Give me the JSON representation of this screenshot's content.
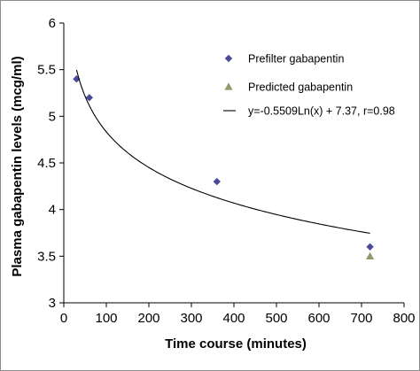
{
  "chart_data": {
    "type": "scatter",
    "title": "",
    "xlabel": "Time course (minutes)",
    "ylabel": "Plasma gabapentin levels (mcg/ml)",
    "xlim": [
      0,
      800
    ],
    "ylim": [
      3,
      6
    ],
    "xticks": [
      0,
      100,
      200,
      300,
      400,
      500,
      600,
      700,
      800
    ],
    "yticks": [
      3,
      3.5,
      4,
      4.5,
      5,
      5.5,
      6
    ],
    "grid": false,
    "legend_position": "right",
    "series": [
      {
        "name": "Prefilter gabapentin",
        "marker": "diamond",
        "color": "#4b4b9a",
        "x": [
          30,
          60,
          360,
          720
        ],
        "y": [
          5.4,
          5.2,
          4.3,
          3.6
        ]
      },
      {
        "name": "Predicted gabapentin",
        "marker": "triangle",
        "color": "#8f9b6a",
        "x": [
          720
        ],
        "y": [
          3.5
        ]
      },
      {
        "name": "y=-0.5509Ln(x) + 7.37, r=0.98",
        "marker": "line",
        "color": "#000000",
        "fit": {
          "type": "log",
          "a": -0.5509,
          "b": 7.37,
          "x_range": [
            30,
            720
          ]
        }
      }
    ]
  }
}
